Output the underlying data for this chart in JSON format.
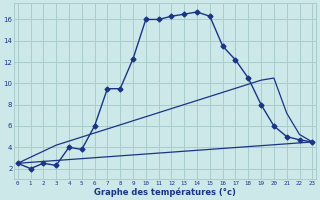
{
  "xlabel": "Graphe des températures (°c)",
  "bg_color": "#cce8e8",
  "grid_color": "#aacccc",
  "line_color": "#1a3585",
  "x_ticks": [
    0,
    1,
    2,
    3,
    4,
    5,
    6,
    7,
    8,
    9,
    10,
    11,
    12,
    13,
    14,
    15,
    16,
    17,
    18,
    19,
    20,
    21,
    22,
    23
  ],
  "y_ticks": [
    2,
    4,
    6,
    8,
    10,
    12,
    14,
    16
  ],
  "ylim": [
    1.0,
    17.5
  ],
  "xlim": [
    -0.3,
    23.3
  ],
  "line1_x": [
    0,
    1,
    2,
    3,
    4,
    5,
    6,
    7,
    8,
    9,
    10,
    11,
    12,
    13,
    14,
    15,
    16,
    17,
    18,
    19,
    20,
    21,
    22,
    23
  ],
  "line1_y": [
    2.5,
    2.0,
    2.5,
    2.3,
    4.0,
    3.8,
    6.0,
    9.5,
    9.5,
    12.3,
    16.0,
    16.0,
    16.3,
    16.5,
    16.7,
    16.3,
    13.5,
    12.2,
    10.5,
    8.0,
    6.0,
    5.0,
    4.7,
    4.5
  ],
  "line2_x": [
    0,
    23
  ],
  "line2_y": [
    2.5,
    4.5
  ],
  "line3_x": [
    0,
    3,
    19,
    20,
    21,
    22,
    23
  ],
  "line3_y": [
    2.5,
    4.2,
    10.3,
    10.5,
    7.2,
    5.2,
    4.5
  ]
}
